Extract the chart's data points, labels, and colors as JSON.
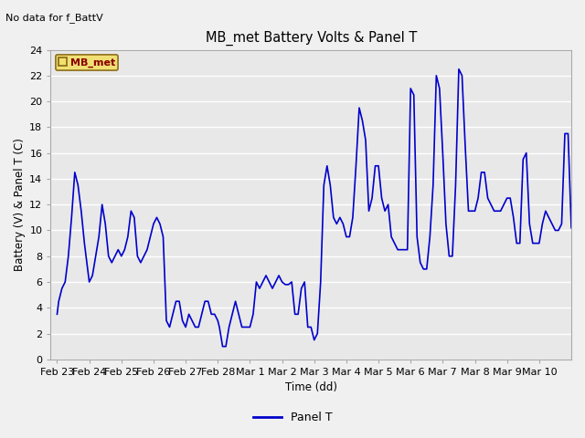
{
  "title": "MB_met Battery Volts & Panel T",
  "no_data_text": "No data for f_BattV",
  "ylabel": "Battery (V) & Panel T (C)",
  "xlabel": "Time (dd)",
  "legend_label": "Panel T",
  "legend_station": "MB_met",
  "ylim": [
    0,
    24
  ],
  "line_color": "#0000cc",
  "plot_bg": "#e8e8e8",
  "fig_bg": "#f0f0f0",
  "xtick_labels": [
    "Feb 23",
    "Feb 24",
    "Feb 25",
    "Feb 26",
    "Feb 27",
    "Feb 28",
    "Mar 1",
    "Mar 2",
    "Mar 3",
    "Mar 4",
    "Mar 5",
    "Mar 6",
    "Mar 7",
    "Mar 8",
    "Mar 9",
    "Mar 10"
  ],
  "panel_t_x": [
    0.0,
    0.05,
    0.15,
    0.25,
    0.35,
    0.45,
    0.55,
    0.65,
    0.75,
    0.85,
    0.95,
    1.0,
    1.1,
    1.2,
    1.3,
    1.4,
    1.5,
    1.6,
    1.7,
    1.8,
    1.9,
    2.0,
    2.1,
    2.2,
    2.3,
    2.4,
    2.5,
    2.6,
    2.7,
    2.8,
    2.9,
    3.0,
    3.1,
    3.2,
    3.3,
    3.4,
    3.5,
    3.6,
    3.7,
    3.8,
    3.9,
    4.0,
    4.1,
    4.2,
    4.3,
    4.4,
    4.5,
    4.6,
    4.7,
    4.8,
    4.9,
    5.0,
    5.05,
    5.15,
    5.25,
    5.35,
    5.45,
    5.55,
    5.65,
    5.75,
    5.85,
    5.95,
    6.0,
    6.1,
    6.2,
    6.3,
    6.4,
    6.5,
    6.6,
    6.7,
    6.8,
    6.9,
    7.0,
    7.1,
    7.2,
    7.3,
    7.4,
    7.5,
    7.6,
    7.7,
    7.8,
    7.9,
    8.0,
    8.1,
    8.2,
    8.3,
    8.4,
    8.5,
    8.6,
    8.7,
    8.8,
    8.9,
    9.0,
    9.1,
    9.2,
    9.3,
    9.4,
    9.5,
    9.6,
    9.7,
    9.8,
    9.9,
    10.0,
    10.1,
    10.2,
    10.3,
    10.4,
    10.5,
    10.6,
    10.7,
    10.8,
    10.9,
    11.0,
    11.1,
    11.2,
    11.3,
    11.4,
    11.5,
    11.6,
    11.7,
    11.8,
    11.9,
    12.0,
    12.1,
    12.2,
    12.3,
    12.4,
    12.5,
    12.6,
    12.7,
    12.8,
    12.9,
    13.0,
    13.1,
    13.2,
    13.3,
    13.4,
    13.5,
    13.6,
    13.7,
    13.8,
    13.9,
    14.0,
    14.1,
    14.2,
    14.3,
    14.4,
    14.5,
    14.6,
    14.7,
    14.8,
    14.9,
    15.0,
    15.1,
    15.2,
    15.3,
    15.4,
    15.5,
    15.6,
    15.7,
    15.8,
    15.9,
    16.0
  ],
  "panel_t_y": [
    3.5,
    4.5,
    5.5,
    6.0,
    8.0,
    11.0,
    14.5,
    13.5,
    11.5,
    9.0,
    7.0,
    6.0,
    6.5,
    8.0,
    9.5,
    12.0,
    10.5,
    8.0,
    7.5,
    8.0,
    8.5,
    8.0,
    8.5,
    9.5,
    11.5,
    11.0,
    8.0,
    7.5,
    8.0,
    8.5,
    9.5,
    10.5,
    11.0,
    10.5,
    9.5,
    3.0,
    2.5,
    3.5,
    4.5,
    4.5,
    3.0,
    2.5,
    3.5,
    3.0,
    2.5,
    2.5,
    3.5,
    4.5,
    4.5,
    3.5,
    3.5,
    3.0,
    2.5,
    1.0,
    1.0,
    2.5,
    3.5,
    4.5,
    3.5,
    2.5,
    2.5,
    2.5,
    2.5,
    3.5,
    6.0,
    5.5,
    6.0,
    6.5,
    6.0,
    5.5,
    6.0,
    6.5,
    6.0,
    5.8,
    5.8,
    6.0,
    3.5,
    3.5,
    5.5,
    6.0,
    2.5,
    2.5,
    1.5,
    2.0,
    6.0,
    13.5,
    15.0,
    13.5,
    11.0,
    10.5,
    11.0,
    10.5,
    9.5,
    9.5,
    11.0,
    15.0,
    19.5,
    18.5,
    17.0,
    11.5,
    12.5,
    15.0,
    15.0,
    12.5,
    11.5,
    12.0,
    9.5,
    9.0,
    8.5,
    8.5,
    8.5,
    8.5,
    21.0,
    20.5,
    9.5,
    7.5,
    7.0,
    7.0,
    9.5,
    13.5,
    22.0,
    21.0,
    16.0,
    10.5,
    8.0,
    8.0,
    13.5,
    22.5,
    22.0,
    16.5,
    11.5,
    11.5,
    11.5,
    12.5,
    14.5,
    14.5,
    12.5,
    12.0,
    11.5,
    11.5,
    11.5,
    12.0,
    12.5,
    12.5,
    11.0,
    9.0,
    9.0,
    15.5,
    16.0,
    10.5,
    9.0,
    9.0,
    9.0,
    10.5,
    11.5,
    11.0,
    10.5,
    10.0,
    10.0,
    10.5,
    17.5,
    17.5,
    10.2
  ]
}
